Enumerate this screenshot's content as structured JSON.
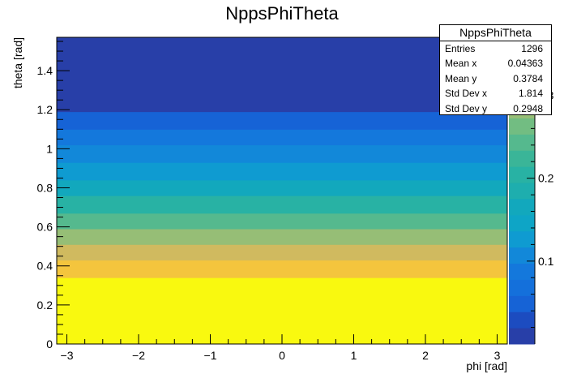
{
  "chart_data": {
    "type": "heatmap",
    "title": "NppsPhiTheta",
    "xlabel": "phi [rad]",
    "ylabel": "theta [rad]",
    "xlim": [
      -3.1416,
      3.1416
    ],
    "ylim": [
      0,
      1.5708
    ],
    "x_ticks": [
      "−3",
      "−2",
      "−1",
      "0",
      "1",
      "2",
      "3"
    ],
    "x_tick_values": [
      -3,
      -2,
      -1,
      0,
      1,
      2,
      3
    ],
    "y_ticks": [
      "0",
      "0.2",
      "0.4",
      "0.6",
      "0.8",
      "1",
      "1.2",
      "1.4"
    ],
    "y_tick_values": [
      0,
      0.2,
      0.4,
      0.6,
      0.8,
      1.0,
      1.2,
      1.4
    ],
    "z_ticks": [
      "0.1",
      "0.2",
      "0.3"
    ],
    "z_tick_values": [
      0.1,
      0.2,
      0.3
    ],
    "zlim": [
      0,
      0.37
    ],
    "bands": [
      {
        "y0": 0.0,
        "y1": 0.34,
        "color": "#f9f90f"
      },
      {
        "y0": 0.34,
        "y1": 0.43,
        "color": "#f4c53d"
      },
      {
        "y0": 0.43,
        "y1": 0.51,
        "color": "#d0ba5f"
      },
      {
        "y0": 0.51,
        "y1": 0.59,
        "color": "#96be76"
      },
      {
        "y0": 0.59,
        "y1": 0.67,
        "color": "#55b98e"
      },
      {
        "y0": 0.67,
        "y1": 0.76,
        "color": "#28b2a4"
      },
      {
        "y0": 0.76,
        "y1": 0.84,
        "color": "#12a8bd"
      },
      {
        "y0": 0.84,
        "y1": 0.93,
        "color": "#0f9bd1"
      },
      {
        "y0": 0.93,
        "y1": 1.02,
        "color": "#1288d9"
      },
      {
        "y0": 1.02,
        "y1": 1.1,
        "color": "#1478dc"
      },
      {
        "y0": 1.1,
        "y1": 1.19,
        "color": "#1663d6"
      },
      {
        "y0": 1.19,
        "y1": 1.5708,
        "color": "#283fa8"
      }
    ],
    "palette": [
      "#283fa8",
      "#1c4cc0",
      "#1663d6",
      "#1470db",
      "#1478dc",
      "#1288d9",
      "#0f9bd1",
      "#0ea5c6",
      "#12a8bd",
      "#1eaeae",
      "#28b2a4",
      "#3ab598",
      "#55b98e",
      "#72bd82",
      "#96be76",
      "#b5bc69",
      "#d0ba5f",
      "#e4bf4c",
      "#f4c53d"
    ]
  },
  "stats": {
    "title": "NppsPhiTheta",
    "rows": [
      {
        "label": "Entries",
        "value": "1296"
      },
      {
        "label": "Mean x",
        "value": "0.04363"
      },
      {
        "label": "Mean y",
        "value": "0.3784"
      },
      {
        "label": "Std Dev x",
        "value": "1.814"
      },
      {
        "label": "Std Dev y",
        "value": "0.2948"
      }
    ]
  }
}
